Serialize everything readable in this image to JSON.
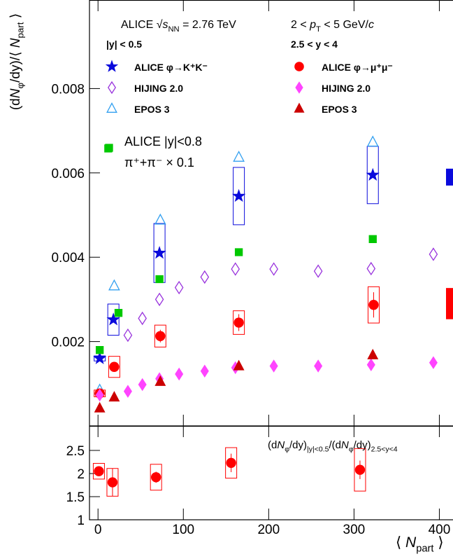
{
  "chart_data": [
    {
      "type": "scatter",
      "y_title": [
        {
          "t": "(d"
        },
        {
          "t": "N",
          "italic": true
        },
        {
          "t": "φ",
          "sub": true
        },
        {
          "t": "/d"
        },
        {
          "t": "y"
        },
        {
          "t": ")/⟨ "
        },
        {
          "t": "N",
          "italic": true
        },
        {
          "t": "part",
          "sub": true
        },
        {
          "t": " ⟩"
        }
      ],
      "annotations": [
        [
          {
            "t": "ALICE √"
          },
          {
            "t": "s",
            "italic": true
          },
          {
            "t": "NN",
            "sub": true
          },
          {
            "t": " = 2.76 TeV"
          }
        ],
        [
          {
            "t": "2 < "
          },
          {
            "t": "p",
            "italic": true
          },
          {
            "t": "T",
            "sub": true
          },
          {
            "t": " < 5 GeV/"
          },
          {
            "t": "c",
            "italic": true
          }
        ]
      ],
      "legend_headers": [
        "|y| < 0.5",
        "2.5 < y < 4"
      ],
      "xlim": [
        -10,
        416
      ],
      "xticks": [
        0,
        100,
        200,
        300,
        400
      ],
      "ylim": [
        0,
        0.0101
      ],
      "yticks": [
        0.002,
        0.004,
        0.006,
        0.008
      ],
      "series": [
        {
          "name": "ALICE φ→K⁺K⁻",
          "color": "#0a0adc",
          "marker": "star",
          "open": false,
          "x": [
            2,
            18,
            72,
            165,
            322
          ],
          "values": [
            0.0016,
            0.00252,
            0.0041,
            0.00545,
            0.00595
          ],
          "sys": [
            6e-05,
            0.00037,
            0.0007,
            0.00068,
            0.00068
          ],
          "norm_value": 0.0059,
          "norm_error": 0.0002
        },
        {
          "name": "HIJING 2.0",
          "color": "#9933dd",
          "marker": "diamond",
          "open": true,
          "x": [
            35,
            52,
            72,
            95,
            125,
            161,
            206,
            258,
            320,
            393
          ],
          "values": [
            0.00215,
            0.00255,
            0.003,
            0.00328,
            0.00353,
            0.00372,
            0.00372,
            0.00367,
            0.00373,
            0.00407
          ]
        },
        {
          "name": "EPOS 3",
          "color": "#33a0f0",
          "marker": "triangle",
          "open": true,
          "x": [
            2,
            19,
            73,
            165,
            322
          ],
          "values": [
            0.00085,
            0.00332,
            0.00488,
            0.00637,
            0.00673
          ]
        },
        {
          "name": "ALICE φ→μ⁺μ⁻",
          "color": "#ff0000",
          "marker": "circle",
          "open": false,
          "x": [
            2,
            19,
            73,
            165,
            323
          ],
          "values": [
            0.00077,
            0.0014,
            0.00213,
            0.00245,
            0.00287
          ],
          "errors": [
            5e-05,
            0.00012,
            0.00015,
            0.0002,
            0.0003
          ],
          "sys": [
            8e-05,
            0.00025,
            0.00026,
            0.00028,
            0.00043
          ],
          "norm_value": 0.0029,
          "norm_error": 0.00037
        },
        {
          "name": "HIJING 2.0",
          "color": "#ff44ff",
          "marker": "diamond",
          "open": false,
          "x": [
            2,
            35,
            52,
            72,
            95,
            125,
            161,
            206,
            258,
            320,
            393
          ],
          "values": [
            0.00073,
            0.00082,
            0.00098,
            0.00112,
            0.00123,
            0.0013,
            0.00138,
            0.00142,
            0.00142,
            0.00145,
            0.0015
          ]
        },
        {
          "name": "EPOS 3",
          "color": "#cc0000",
          "marker": "triangle",
          "open": false,
          "x": [
            2,
            19,
            73,
            165,
            322
          ],
          "values": [
            0.00042,
            0.00068,
            0.00105,
            0.00142,
            0.00168
          ]
        },
        {
          "name": "ALICE |y|<0.8",
          "subtitle": "π⁺+π⁻ × 0.1",
          "color": "#00c800",
          "marker": "square",
          "open": false,
          "x": [
            2,
            12,
            24,
            72,
            165,
            322
          ],
          "values": [
            0.0018,
            0.00658,
            0.00268,
            0.00348,
            0.00412,
            0.00443
          ]
        }
      ]
    },
    {
      "type": "scatter",
      "label": [
        {
          "t": "(d"
        },
        {
          "t": "N",
          "italic": true
        },
        {
          "t": "φ",
          "sub": true
        },
        {
          "t": "/d"
        },
        {
          "t": "y"
        },
        {
          "t": ")"
        },
        {
          "t": "|y|<0.5",
          "sub": true
        },
        {
          "t": "/(d"
        },
        {
          "t": "N",
          "italic": true
        },
        {
          "t": "φ",
          "sub": true
        },
        {
          "t": "/d"
        },
        {
          "t": "y"
        },
        {
          "t": ")"
        },
        {
          "t": "2.5<y<4",
          "sub": true
        }
      ],
      "x_title": [
        {
          "t": "⟨ "
        },
        {
          "t": "N",
          "italic": true
        },
        {
          "t": "part",
          "sub": true
        },
        {
          "t": " ⟩"
        }
      ],
      "xlim": [
        -10,
        416
      ],
      "xticks": [
        0,
        100,
        200,
        300,
        400
      ],
      "ylim": [
        1,
        3.03
      ],
      "yticks": [
        1,
        1.5,
        2,
        2.5
      ],
      "series": [
        {
          "color": "#ff0000",
          "marker": "circle",
          "open": false,
          "x": [
            1,
            17,
            68,
            156,
            307
          ],
          "values": [
            2.05,
            1.81,
            1.92,
            2.23,
            2.08
          ],
          "errors": [
            0.08,
            0.3,
            0.12,
            0.2,
            0.2
          ],
          "sys": [
            0.17,
            0.3,
            0.28,
            0.33,
            0.46
          ]
        }
      ]
    }
  ]
}
